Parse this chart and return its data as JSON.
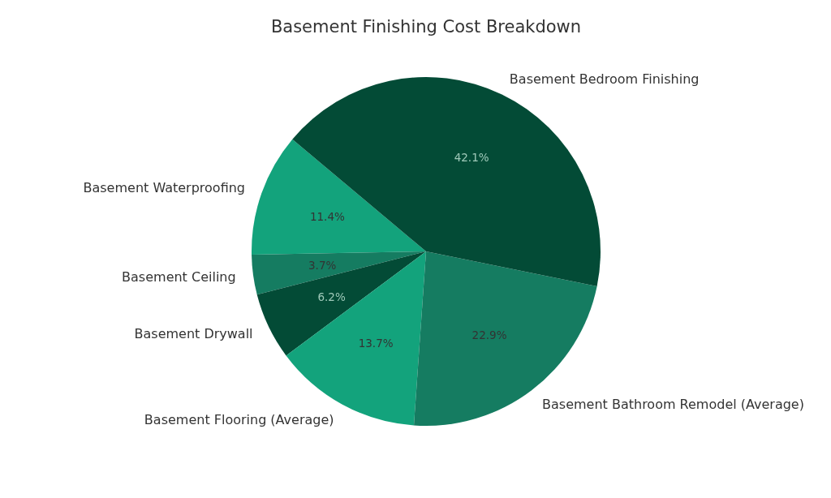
{
  "chart_data": {
    "type": "pie",
    "title": "Basement Finishing Cost Breakdown",
    "categories": [
      "Basement Waterproofing",
      "Basement Ceiling",
      "Basement Drywall",
      "Basement Flooring (Average)",
      "Basement Bathroom Remodel (Average)",
      "Basement Bedroom Finishing"
    ],
    "values": [
      11.4,
      3.7,
      6.2,
      13.7,
      22.9,
      42.1
    ],
    "colors": [
      "#13a37c",
      "#157c61",
      "#034b36",
      "#13a37c",
      "#157c61",
      "#034b36"
    ],
    "value_labels": [
      "11.4%",
      "3.7%",
      "6.2%",
      "13.7%",
      "22.9%",
      "42.1%"
    ]
  }
}
